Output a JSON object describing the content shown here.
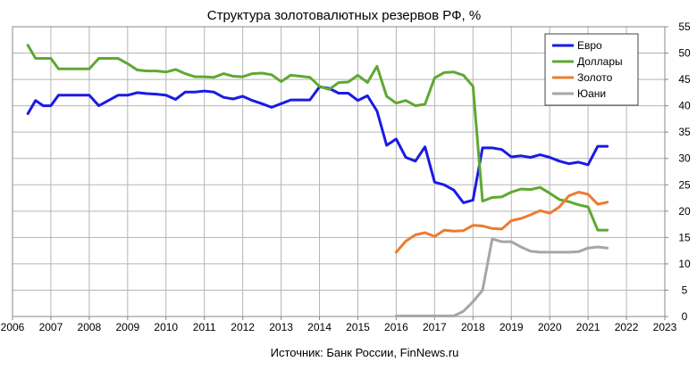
{
  "chart_data": {
    "type": "line",
    "title": "Структура золотовалютных резервов РФ, %",
    "source": "Источник: Банк России, FinNews.ru",
    "xlabel": "",
    "ylabel": "",
    "xlim": [
      2006,
      2023
    ],
    "ylim": [
      0,
      55
    ],
    "x_ticks": [
      "2006",
      "2007",
      "2008",
      "2009",
      "2010",
      "2011",
      "2012",
      "2013",
      "2014",
      "2015",
      "2016",
      "2017",
      "2018",
      "2019",
      "2020",
      "2021",
      "2022",
      "2023"
    ],
    "y_ticks": [
      "0",
      "5",
      "10",
      "15",
      "20",
      "25",
      "30",
      "35",
      "40",
      "45",
      "50",
      "55"
    ],
    "y_axis_side": "right",
    "grid": true,
    "legend_position": "top-right",
    "series": [
      {
        "name": "Евро",
        "color": "#1a1ae6",
        "x": [
          2006.4,
          2006.6,
          2006.8,
          2007.0,
          2007.2,
          2007.5,
          2007.75,
          2008.0,
          2008.25,
          2008.5,
          2008.75,
          2009.0,
          2009.25,
          2009.5,
          2009.75,
          2010.0,
          2010.25,
          2010.5,
          2010.75,
          2011.0,
          2011.25,
          2011.5,
          2011.75,
          2012.0,
          2012.25,
          2012.5,
          2012.75,
          2013.0,
          2013.25,
          2013.5,
          2013.75,
          2014.0,
          2014.25,
          2014.5,
          2014.75,
          2015.0,
          2015.25,
          2015.5,
          2015.75,
          2016.0,
          2016.25,
          2016.5,
          2016.75,
          2017.0,
          2017.25,
          2017.5,
          2017.75,
          2018.0,
          2018.25,
          2018.5,
          2018.75,
          2019.0,
          2019.25,
          2019.5,
          2019.75,
          2020.0,
          2020.25,
          2020.5,
          2020.75,
          2021.0,
          2021.25,
          2021.5
        ],
        "values": [
          38.5,
          41,
          40,
          40,
          42,
          42,
          42,
          42,
          40,
          41,
          42,
          42,
          42.5,
          42.3,
          42.2,
          42,
          41.2,
          42.6,
          42.6,
          42.8,
          42.6,
          41.6,
          41.3,
          41.8,
          41,
          40.4,
          39.7,
          40.4,
          41.1,
          41.1,
          41.1,
          43.6,
          43.3,
          42.4,
          42.4,
          41,
          41.9,
          39,
          32.5,
          33.7,
          30.2,
          29.5,
          32.2,
          25.5,
          25,
          24,
          21.6,
          22.1,
          32,
          32,
          31.7,
          30.3,
          30.5,
          30.2,
          30.7,
          30.2,
          29.5,
          29,
          29.3,
          28.8,
          32.3,
          32.3
        ]
      },
      {
        "name": "Доллары",
        "color": "#5fa832",
        "x": [
          2006.4,
          2006.6,
          2006.8,
          2007.0,
          2007.2,
          2007.5,
          2007.75,
          2008.0,
          2008.25,
          2008.5,
          2008.75,
          2009.0,
          2009.25,
          2009.5,
          2009.75,
          2010.0,
          2010.25,
          2010.5,
          2010.75,
          2011.0,
          2011.25,
          2011.5,
          2011.75,
          2012.0,
          2012.25,
          2012.5,
          2012.75,
          2013.0,
          2013.25,
          2013.5,
          2013.75,
          2014.0,
          2014.25,
          2014.5,
          2014.75,
          2015.0,
          2015.25,
          2015.5,
          2015.75,
          2016.0,
          2016.25,
          2016.5,
          2016.75,
          2017.0,
          2017.25,
          2017.5,
          2017.75,
          2018.0,
          2018.25,
          2018.5,
          2018.75,
          2019.0,
          2019.25,
          2019.5,
          2019.75,
          2020.0,
          2020.25,
          2020.5,
          2020.75,
          2021.0,
          2021.25,
          2021.5
        ],
        "values": [
          51.5,
          49,
          49,
          49,
          47,
          47,
          47,
          47,
          49,
          49,
          49,
          48,
          46.8,
          46.6,
          46.6,
          46.4,
          46.9,
          46.1,
          45.5,
          45.5,
          45.4,
          46.1,
          45.6,
          45.5,
          46.1,
          46.2,
          45.9,
          44.6,
          45.8,
          45.6,
          45.4,
          43.7,
          43.1,
          44.4,
          44.5,
          45.8,
          44.4,
          47.5,
          41.8,
          40.5,
          41,
          40,
          40.3,
          45.3,
          46.3,
          46.4,
          45.8,
          43.7,
          21.9,
          22.6,
          22.7,
          23.6,
          24.2,
          24.1,
          24.5,
          23.4,
          22.2,
          21.8,
          21.2,
          20.8,
          16.4,
          16.4
        ]
      },
      {
        "name": "Золото",
        "color": "#ec7c30",
        "x": [
          2016.0,
          2016.25,
          2016.5,
          2016.75,
          2017.0,
          2017.25,
          2017.5,
          2017.75,
          2018.0,
          2018.25,
          2018.5,
          2018.75,
          2019.0,
          2019.25,
          2019.5,
          2019.75,
          2020.0,
          2020.25,
          2020.5,
          2020.75,
          2021.0,
          2021.25,
          2021.5
        ],
        "values": [
          12.2,
          14.3,
          15.5,
          15.9,
          15.2,
          16.4,
          16.2,
          16.3,
          17.3,
          17.2,
          16.7,
          16.6,
          18.2,
          18.6,
          19.3,
          20.1,
          19.6,
          20.8,
          22.9,
          23.6,
          23.2,
          21.3,
          21.7
        ]
      },
      {
        "name": "Юани",
        "color": "#a6a6a6",
        "x": [
          2016.0,
          2016.25,
          2016.5,
          2016.75,
          2017.0,
          2017.25,
          2017.5,
          2017.75,
          2018.0,
          2018.25,
          2018.5,
          2018.75,
          2019.0,
          2019.25,
          2019.5,
          2019.75,
          2020.0,
          2020.25,
          2020.5,
          2020.75,
          2021.0,
          2021.25,
          2021.5
        ],
        "values": [
          0.1,
          0.1,
          0.1,
          0.1,
          0.1,
          0.1,
          0.1,
          1,
          2.8,
          5,
          14.7,
          14.2,
          14.2,
          13.2,
          12.4,
          12.2,
          12.2,
          12.2,
          12.2,
          12.3,
          13,
          13.2,
          13
        ]
      }
    ]
  }
}
